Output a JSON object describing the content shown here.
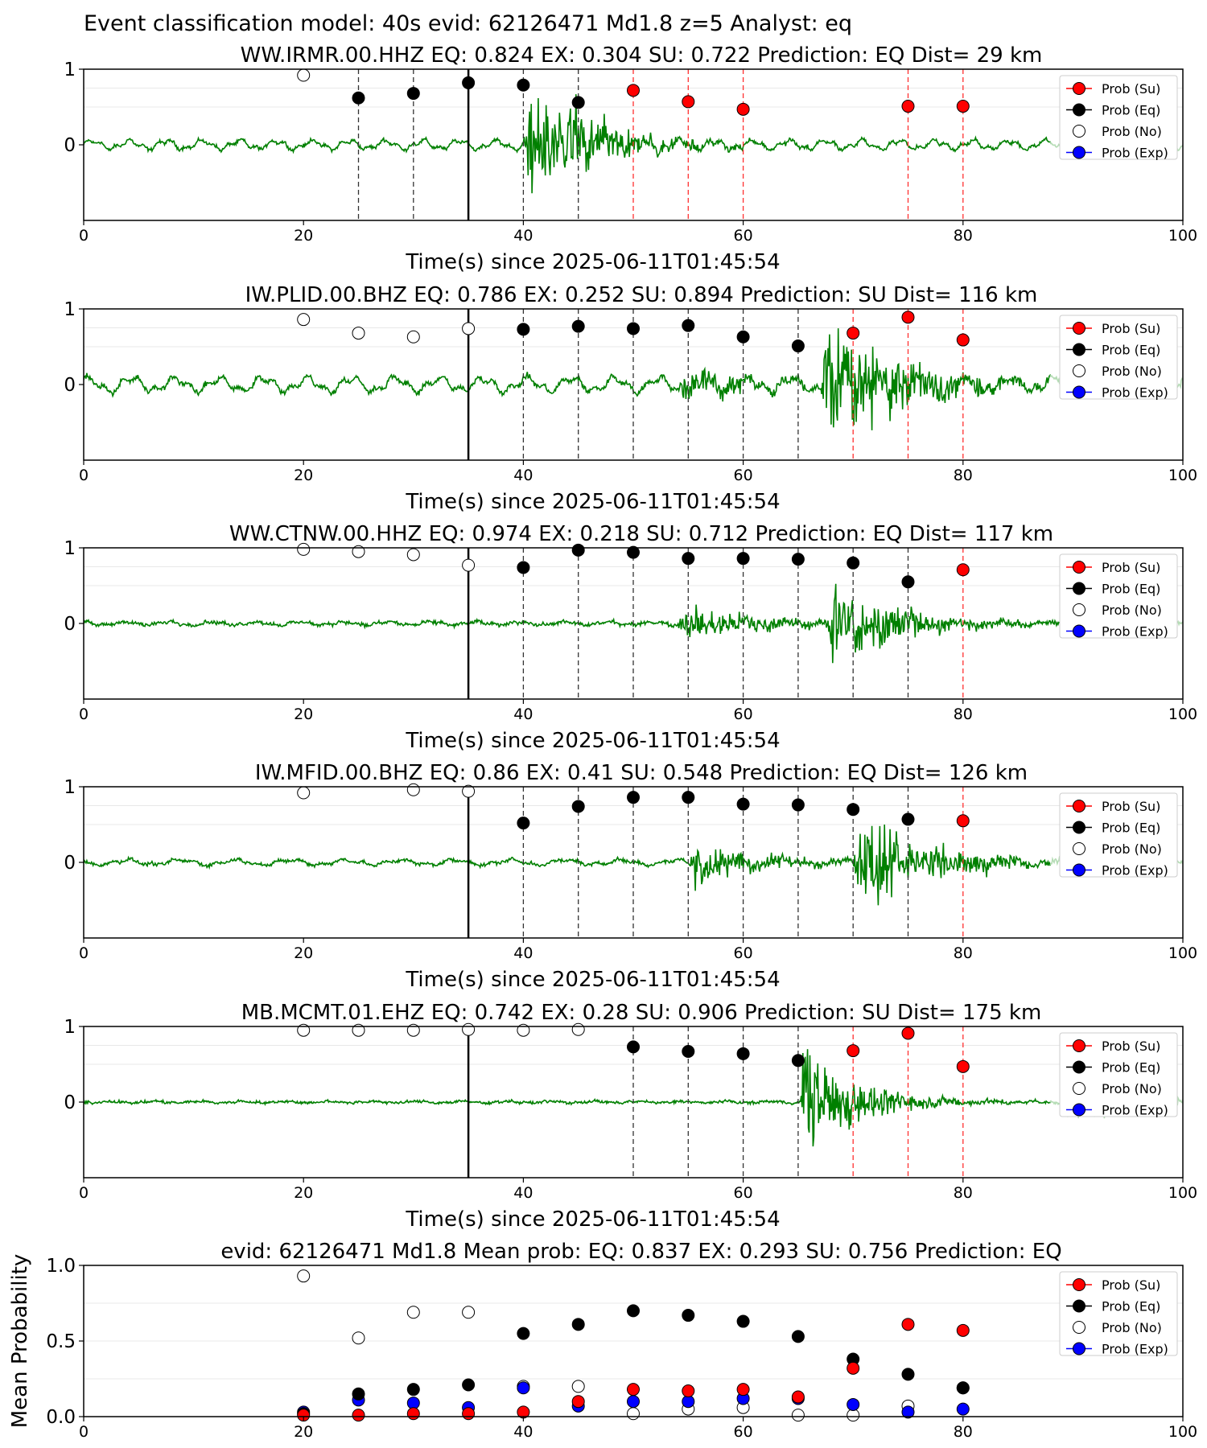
{
  "figure_title": "Event classification model: 40s evid: 62126471 Md1.8 z=5 Analyst: eq",
  "legend_labels": [
    "Prob (Su)",
    "Prob (Eq)",
    "Prob (No)",
    "Prob (Exp)"
  ],
  "colors": {
    "su": "#ff0000",
    "eq": "#000000",
    "no": "#ffffff",
    "exp": "#0000ff",
    "waveform": "#008000"
  },
  "chart_data": [
    {
      "type": "scatter",
      "title": "WW.IRMR.00.HHZ   EQ: 0.824  EX: 0.304  SU: 0.722   Prediction: EQ    Dist= 29 km",
      "xlabel": "Time(s) since 2025-06-11T01:45:54",
      "ylabel": "",
      "xlim": [
        0,
        100
      ],
      "ylim": [
        -1,
        1
      ],
      "xticks": [
        "0",
        "20",
        "40",
        "60",
        "80",
        "100"
      ],
      "yticks": [
        "1",
        "0"
      ],
      "pick_time": 35,
      "window_lines": [
        {
          "x": 25,
          "color": "black"
        },
        {
          "x": 30,
          "color": "black"
        },
        {
          "x": 40,
          "color": "black"
        },
        {
          "x": 45,
          "color": "black"
        },
        {
          "x": 50,
          "color": "red"
        },
        {
          "x": 55,
          "color": "red"
        },
        {
          "x": 60,
          "color": "red"
        },
        {
          "x": 75,
          "color": "red"
        },
        {
          "x": 80,
          "color": "red"
        }
      ],
      "points": [
        {
          "x": 20,
          "y": 0.92,
          "class": "no"
        },
        {
          "x": 25,
          "y": 0.62,
          "class": "eq"
        },
        {
          "x": 30,
          "y": 0.68,
          "class": "eq"
        },
        {
          "x": 35,
          "y": 0.82,
          "class": "eq"
        },
        {
          "x": 40,
          "y": 0.79,
          "class": "eq"
        },
        {
          "x": 45,
          "y": 0.56,
          "class": "eq"
        },
        {
          "x": 50,
          "y": 0.72,
          "class": "su"
        },
        {
          "x": 55,
          "y": 0.57,
          "class": "su"
        },
        {
          "x": 60,
          "y": 0.47,
          "class": "su"
        },
        {
          "x": 75,
          "y": 0.51,
          "class": "su"
        },
        {
          "x": 80,
          "y": 0.51,
          "class": "su"
        }
      ],
      "waveform": {
        "pre_amp": 0.05,
        "pre_freq": 0.6,
        "events": [
          {
            "t": 40,
            "amp": 0.6,
            "decay": 6
          },
          {
            "t": 44,
            "amp": 0.4,
            "decay": 4
          }
        ],
        "noise": 0.02,
        "fade_start": 88
      },
      "legend": "top-right",
      "grid": true
    },
    {
      "type": "scatter",
      "title": "IW.PLID.00.BHZ   EQ: 0.786  EX: 0.252  SU: 0.894   Prediction: SU    Dist= 116 km",
      "xlabel": "Time(s) since 2025-06-11T01:45:54",
      "ylabel": "",
      "xlim": [
        0,
        100
      ],
      "ylim": [
        -1,
        1
      ],
      "xticks": [
        "0",
        "20",
        "40",
        "60",
        "80",
        "100"
      ],
      "yticks": [
        "1",
        "0"
      ],
      "pick_time": 35,
      "window_lines": [
        {
          "x": 40,
          "color": "black"
        },
        {
          "x": 45,
          "color": "black"
        },
        {
          "x": 50,
          "color": "black"
        },
        {
          "x": 55,
          "color": "black"
        },
        {
          "x": 60,
          "color": "black"
        },
        {
          "x": 65,
          "color": "black"
        },
        {
          "x": 70,
          "color": "red"
        },
        {
          "x": 75,
          "color": "red"
        },
        {
          "x": 80,
          "color": "red"
        }
      ],
      "points": [
        {
          "x": 20,
          "y": 0.86,
          "class": "no"
        },
        {
          "x": 25,
          "y": 0.68,
          "class": "no"
        },
        {
          "x": 30,
          "y": 0.63,
          "class": "no"
        },
        {
          "x": 35,
          "y": 0.74,
          "class": "no"
        },
        {
          "x": 40,
          "y": 0.73,
          "class": "eq"
        },
        {
          "x": 45,
          "y": 0.77,
          "class": "eq"
        },
        {
          "x": 50,
          "y": 0.74,
          "class": "eq"
        },
        {
          "x": 55,
          "y": 0.78,
          "class": "eq"
        },
        {
          "x": 60,
          "y": 0.63,
          "class": "eq"
        },
        {
          "x": 65,
          "y": 0.51,
          "class": "eq"
        },
        {
          "x": 70,
          "y": 0.68,
          "class": "su"
        },
        {
          "x": 75,
          "y": 0.89,
          "class": "su"
        },
        {
          "x": 80,
          "y": 0.59,
          "class": "su"
        }
      ],
      "waveform": {
        "pre_amp": 0.08,
        "pre_freq": 0.5,
        "events": [
          {
            "t": 54,
            "amp": 0.2,
            "decay": 6
          },
          {
            "t": 67,
            "amp": 0.65,
            "decay": 8
          }
        ],
        "noise": 0.03,
        "fade_start": 88
      },
      "legend": "top-right",
      "grid": true
    },
    {
      "type": "scatter",
      "title": "WW.CTNW.00.HHZ   EQ: 0.974  EX: 0.218  SU: 0.712   Prediction: EQ    Dist= 117 km",
      "xlabel": "Time(s) since 2025-06-11T01:45:54",
      "ylabel": "",
      "xlim": [
        0,
        100
      ],
      "ylim": [
        -1,
        1
      ],
      "xticks": [
        "0",
        "20",
        "40",
        "60",
        "80",
        "100"
      ],
      "yticks": [
        "1",
        "0"
      ],
      "pick_time": 35,
      "window_lines": [
        {
          "x": 40,
          "color": "black"
        },
        {
          "x": 45,
          "color": "black"
        },
        {
          "x": 50,
          "color": "black"
        },
        {
          "x": 55,
          "color": "black"
        },
        {
          "x": 60,
          "color": "black"
        },
        {
          "x": 65,
          "color": "black"
        },
        {
          "x": 70,
          "color": "black"
        },
        {
          "x": 75,
          "color": "black"
        },
        {
          "x": 80,
          "color": "red"
        }
      ],
      "points": [
        {
          "x": 20,
          "y": 0.98,
          "class": "no"
        },
        {
          "x": 25,
          "y": 0.95,
          "class": "no"
        },
        {
          "x": 30,
          "y": 0.91,
          "class": "no"
        },
        {
          "x": 35,
          "y": 0.77,
          "class": "no"
        },
        {
          "x": 40,
          "y": 0.74,
          "class": "eq"
        },
        {
          "x": 45,
          "y": 0.97,
          "class": "eq"
        },
        {
          "x": 50,
          "y": 0.94,
          "class": "eq"
        },
        {
          "x": 55,
          "y": 0.86,
          "class": "eq"
        },
        {
          "x": 60,
          "y": 0.86,
          "class": "eq"
        },
        {
          "x": 65,
          "y": 0.85,
          "class": "eq"
        },
        {
          "x": 70,
          "y": 0.8,
          "class": "eq"
        },
        {
          "x": 75,
          "y": 0.55,
          "class": "eq"
        },
        {
          "x": 80,
          "y": 0.71,
          "class": "su"
        }
      ],
      "waveform": {
        "pre_amp": 0.02,
        "pre_freq": 0.5,
        "events": [
          {
            "t": 54,
            "amp": 0.2,
            "decay": 8
          },
          {
            "t": 67.5,
            "amp": 0.55,
            "decay": 6
          }
        ],
        "noise": 0.02,
        "fade_start": 90
      },
      "legend": "top-right",
      "grid": true
    },
    {
      "type": "scatter",
      "title": "IW.MFID.00.BHZ   EQ: 0.86  EX: 0.41  SU: 0.548   Prediction: EQ    Dist= 126 km",
      "xlabel": "Time(s) since 2025-06-11T01:45:54",
      "ylabel": "",
      "xlim": [
        0,
        100
      ],
      "ylim": [
        -1,
        1
      ],
      "xticks": [
        "0",
        "20",
        "40",
        "60",
        "80",
        "100"
      ],
      "yticks": [
        "1",
        "0"
      ],
      "pick_time": 35,
      "window_lines": [
        {
          "x": 40,
          "color": "black"
        },
        {
          "x": 45,
          "color": "black"
        },
        {
          "x": 50,
          "color": "black"
        },
        {
          "x": 55,
          "color": "black"
        },
        {
          "x": 60,
          "color": "black"
        },
        {
          "x": 65,
          "color": "black"
        },
        {
          "x": 70,
          "color": "black"
        },
        {
          "x": 75,
          "color": "black"
        },
        {
          "x": 80,
          "color": "red"
        }
      ],
      "points": [
        {
          "x": 20,
          "y": 0.92,
          "class": "no"
        },
        {
          "x": 30,
          "y": 0.96,
          "class": "no"
        },
        {
          "x": 35,
          "y": 0.94,
          "class": "no"
        },
        {
          "x": 40,
          "y": 0.52,
          "class": "eq"
        },
        {
          "x": 45,
          "y": 0.74,
          "class": "eq"
        },
        {
          "x": 50,
          "y": 0.86,
          "class": "eq"
        },
        {
          "x": 55,
          "y": 0.86,
          "class": "eq"
        },
        {
          "x": 60,
          "y": 0.77,
          "class": "eq"
        },
        {
          "x": 65,
          "y": 0.76,
          "class": "eq"
        },
        {
          "x": 70,
          "y": 0.7,
          "class": "eq"
        },
        {
          "x": 75,
          "y": 0.57,
          "class": "eq"
        },
        {
          "x": 80,
          "y": 0.55,
          "class": "su"
        }
      ],
      "waveform": {
        "pre_amp": 0.03,
        "pre_freq": 0.4,
        "events": [
          {
            "t": 55,
            "amp": 0.3,
            "decay": 6
          },
          {
            "t": 70,
            "amp": 0.55,
            "decay": 7
          }
        ],
        "noise": 0.02,
        "fade_start": 88
      },
      "legend": "top-right",
      "grid": true
    },
    {
      "type": "scatter",
      "title": "MB.MCMT.01.EHZ   EQ: 0.742  EX: 0.28  SU: 0.906   Prediction: SU    Dist= 175 km",
      "xlabel": "Time(s) since 2025-06-11T01:45:54",
      "ylabel": "",
      "xlim": [
        0,
        100
      ],
      "ylim": [
        -1,
        1
      ],
      "xticks": [
        "0",
        "20",
        "40",
        "60",
        "80",
        "100"
      ],
      "yticks": [
        "1",
        "0"
      ],
      "pick_time": 35,
      "window_lines": [
        {
          "x": 50,
          "color": "black"
        },
        {
          "x": 55,
          "color": "black"
        },
        {
          "x": 60,
          "color": "black"
        },
        {
          "x": 65,
          "color": "black"
        },
        {
          "x": 70,
          "color": "red"
        },
        {
          "x": 75,
          "color": "red"
        },
        {
          "x": 80,
          "color": "red"
        }
      ],
      "points": [
        {
          "x": 20,
          "y": 0.95,
          "class": "no"
        },
        {
          "x": 25,
          "y": 0.95,
          "class": "no"
        },
        {
          "x": 30,
          "y": 0.95,
          "class": "no"
        },
        {
          "x": 35,
          "y": 0.96,
          "class": "no"
        },
        {
          "x": 40,
          "y": 0.95,
          "class": "no"
        },
        {
          "x": 45,
          "y": 0.96,
          "class": "no"
        },
        {
          "x": 50,
          "y": 0.73,
          "class": "eq"
        },
        {
          "x": 55,
          "y": 0.67,
          "class": "eq"
        },
        {
          "x": 60,
          "y": 0.64,
          "class": "eq"
        },
        {
          "x": 65,
          "y": 0.55,
          "class": "eq"
        },
        {
          "x": 70,
          "y": 0.68,
          "class": "su"
        },
        {
          "x": 75,
          "y": 0.91,
          "class": "su"
        },
        {
          "x": 80,
          "y": 0.47,
          "class": "su"
        }
      ],
      "waveform": {
        "pre_amp": 0.01,
        "pre_freq": 0.5,
        "events": [
          {
            "t": 65,
            "amp": 0.75,
            "decay": 5
          },
          {
            "t": 89,
            "amp": 0.25,
            "decay": 6
          }
        ],
        "noise": 0.015,
        "fade_start": 88
      },
      "legend": "top-right",
      "grid": true
    },
    {
      "type": "scatter",
      "title": "evid: 62126471  Md1.8   Mean prob:   EQ: 0.837  EX: 0.293  SU: 0.756   Prediction: EQ",
      "xlabel": "",
      "ylabel": "Mean Probability",
      "xlim": [
        0,
        100
      ],
      "ylim": [
        0,
        1
      ],
      "xticks": [
        "0",
        "20",
        "40",
        "60",
        "80",
        "100"
      ],
      "yticks": [
        "1.0",
        "0.5",
        "0.0"
      ],
      "series": [
        {
          "name": "Prob (Su)",
          "class": "su",
          "x": [
            20,
            25,
            30,
            35,
            40,
            45,
            50,
            55,
            60,
            65,
            70,
            75,
            80
          ],
          "values": [
            0.01,
            0.01,
            0.02,
            0.02,
            0.03,
            0.1,
            0.18,
            0.17,
            0.18,
            0.13,
            0.32,
            0.61,
            0.57
          ]
        },
        {
          "name": "Prob (Eq)",
          "class": "eq",
          "x": [
            20,
            25,
            30,
            35,
            40,
            45,
            50,
            55,
            60,
            65,
            70,
            75,
            80
          ],
          "values": [
            0.02,
            0.15,
            0.18,
            0.21,
            0.55,
            0.61,
            0.7,
            0.67,
            0.63,
            0.53,
            0.38,
            0.28,
            0.19
          ]
        },
        {
          "name": "Prob (No)",
          "class": "no",
          "x": [
            20,
            25,
            30,
            35,
            40,
            45,
            50,
            55,
            60,
            65,
            70,
            75,
            80
          ],
          "values": [
            0.93,
            0.52,
            0.69,
            0.69,
            0.2,
            0.2,
            0.02,
            0.05,
            0.06,
            0.01,
            0.01,
            0.07,
            0.19
          ]
        },
        {
          "name": "Prob (Exp)",
          "class": "exp",
          "x": [
            20,
            25,
            30,
            35,
            40,
            45,
            50,
            55,
            60,
            65,
            70,
            75,
            80
          ],
          "values": [
            0.03,
            0.11,
            0.09,
            0.06,
            0.19,
            0.07,
            0.1,
            0.1,
            0.12,
            0.12,
            0.08,
            0.03,
            0.05
          ]
        }
      ],
      "legend": "top-right",
      "grid": true
    }
  ]
}
